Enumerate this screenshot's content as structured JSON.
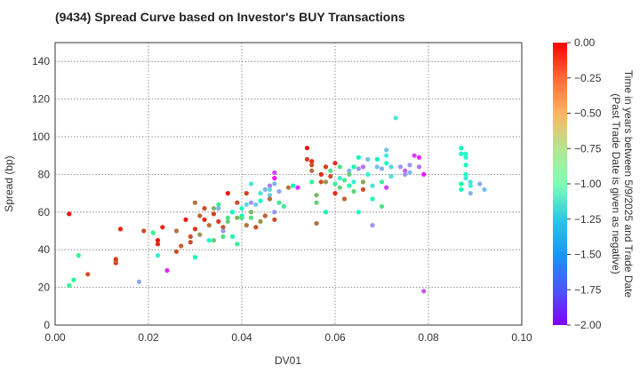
{
  "chart_data": {
    "type": "scatter",
    "title": "(9434)   Spread Curve based on Investor's BUY Transactions",
    "xlabel": "DV01",
    "ylabel": "Spread (bp)",
    "xlim": [
      0,
      0.1
    ],
    "ylim": [
      0,
      150
    ],
    "xticks": [
      0.0,
      0.02,
      0.04,
      0.06,
      0.08,
      0.1
    ],
    "xtick_labels": [
      "0.00",
      "0.02",
      "0.04",
      "0.06",
      "0.08",
      "0.10"
    ],
    "yticks": [
      0,
      20,
      40,
      60,
      80,
      100,
      120,
      140
    ],
    "ytick_labels": [
      "0",
      "20",
      "40",
      "60",
      "80",
      "100",
      "120",
      "140"
    ],
    "grid": true,
    "colorbar": {
      "label_line1": "Time in years between 5/9/2025 and Trade Date",
      "label_line2": "(Past Trade Date is given as negative)",
      "range": [
        -2.0,
        0.0
      ],
      "colormap": "rainbow",
      "ticks": [
        0.0,
        -0.25,
        -0.5,
        -0.75,
        -1.0,
        -1.25,
        -1.5,
        -1.75,
        -2.0
      ],
      "tick_labels": [
        "0.00",
        "−0.25",
        "−0.50",
        "−0.75",
        "−1.00",
        "−1.25",
        "−1.50",
        "−1.75",
        "−2.00"
      ]
    },
    "points": [
      [
        0.003,
        59,
        -0.05
      ],
      [
        0.003,
        21,
        -0.8
      ],
      [
        0.004,
        24,
        -0.8
      ],
      [
        0.005,
        37,
        -0.8
      ],
      [
        0.007,
        27,
        -0.2
      ],
      [
        0.013,
        33,
        -0.1
      ],
      [
        0.013,
        34,
        -0.3
      ],
      [
        0.013,
        35,
        -0.15
      ],
      [
        0.014,
        51,
        -0.1
      ],
      [
        0.018,
        23,
        -1.55
      ],
      [
        0.019,
        50,
        -0.2
      ],
      [
        0.021,
        49,
        -0.8
      ],
      [
        0.022,
        45,
        -0.05
      ],
      [
        0.022,
        43,
        -0.1
      ],
      [
        0.022,
        37,
        -1.2
      ],
      [
        0.023,
        52,
        -0.1
      ],
      [
        0.024,
        29,
        -1.9
      ],
      [
        0.026,
        39,
        -0.2
      ],
      [
        0.026,
        50,
        -0.3
      ],
      [
        0.027,
        42,
        -0.25
      ],
      [
        0.028,
        56,
        -0.05
      ],
      [
        0.029,
        47,
        -0.2
      ],
      [
        0.029,
        44,
        -0.2
      ],
      [
        0.03,
        51,
        -0.15
      ],
      [
        0.03,
        36,
        -1.0
      ],
      [
        0.03,
        65,
        -0.3
      ],
      [
        0.031,
        58,
        -0.25
      ],
      [
        0.031,
        48,
        -0.4
      ],
      [
        0.032,
        62,
        -0.2
      ],
      [
        0.032,
        56,
        -0.1
      ],
      [
        0.033,
        53,
        -0.3
      ],
      [
        0.033,
        45,
        -1.1
      ],
      [
        0.034,
        62,
        -0.5
      ],
      [
        0.034,
        59,
        -0.15
      ],
      [
        0.034,
        45,
        -0.6
      ],
      [
        0.035,
        64,
        -0.8
      ],
      [
        0.035,
        55,
        -0.15
      ],
      [
        0.035,
        62,
        -1.5
      ],
      [
        0.036,
        52,
        -0.2
      ],
      [
        0.036,
        50,
        -1.6
      ],
      [
        0.036,
        47,
        -0.7
      ],
      [
        0.037,
        70,
        -0.05
      ],
      [
        0.037,
        57,
        -0.7
      ],
      [
        0.037,
        55,
        -0.6
      ],
      [
        0.038,
        60,
        -1.0
      ],
      [
        0.038,
        47,
        -0.9
      ],
      [
        0.039,
        57,
        -0.5
      ],
      [
        0.039,
        65,
        -0.2
      ],
      [
        0.039,
        43,
        -0.8
      ],
      [
        0.04,
        58,
        -1.0
      ],
      [
        0.04,
        62,
        -1.1
      ],
      [
        0.04,
        57,
        -0.7
      ],
      [
        0.041,
        53,
        -0.3
      ],
      [
        0.041,
        70,
        -0.15
      ],
      [
        0.041,
        64,
        -1.4
      ],
      [
        0.042,
        75,
        -1.3
      ],
      [
        0.042,
        65,
        -1.6
      ],
      [
        0.042,
        60,
        -0.5
      ],
      [
        0.042,
        57,
        -0.7
      ],
      [
        0.043,
        64,
        -1.45
      ],
      [
        0.043,
        52,
        -0.2
      ],
      [
        0.044,
        66,
        -1.1
      ],
      [
        0.044,
        55,
        -0.4
      ],
      [
        0.044,
        70,
        -1.3
      ],
      [
        0.045,
        72,
        -1.5
      ],
      [
        0.045,
        58,
        -0.25
      ],
      [
        0.046,
        69,
        -1.4
      ],
      [
        0.046,
        74,
        -1.7
      ],
      [
        0.046,
        72,
        -1.35
      ],
      [
        0.046,
        67,
        -0.3
      ],
      [
        0.047,
        75,
        -1.5
      ],
      [
        0.047,
        60,
        -1.6
      ],
      [
        0.047,
        56,
        -0.2
      ],
      [
        0.047,
        78,
        -1.95
      ],
      [
        0.047,
        81,
        -1.85
      ],
      [
        0.048,
        71,
        -1.55
      ],
      [
        0.048,
        65,
        -0.75
      ],
      [
        0.049,
        63,
        -0.8
      ],
      [
        0.05,
        73,
        -0.3
      ],
      [
        0.051,
        74,
        -1.0
      ],
      [
        0.052,
        73,
        -1.9
      ],
      [
        0.054,
        94,
        -0.05
      ],
      [
        0.054,
        88,
        -0.15
      ],
      [
        0.055,
        87,
        -0.1
      ],
      [
        0.055,
        82,
        -0.3
      ],
      [
        0.055,
        85,
        -0.2
      ],
      [
        0.055,
        76,
        -0.8
      ],
      [
        0.056,
        69,
        -0.5
      ],
      [
        0.056,
        65,
        -0.6
      ],
      [
        0.056,
        54,
        -0.3
      ],
      [
        0.057,
        80,
        -0.1
      ],
      [
        0.057,
        76,
        -0.2
      ],
      [
        0.058,
        84,
        -0.15
      ],
      [
        0.058,
        76,
        -0.4
      ],
      [
        0.058,
        60,
        -1.0
      ],
      [
        0.059,
        82,
        -0.7
      ],
      [
        0.059,
        79,
        -0.2
      ],
      [
        0.06,
        75,
        -0.8
      ],
      [
        0.06,
        86,
        -0.1
      ],
      [
        0.06,
        70,
        -0.1
      ],
      [
        0.061,
        84,
        -0.7
      ],
      [
        0.061,
        78,
        -1.2
      ],
      [
        0.061,
        73,
        -0.6
      ],
      [
        0.062,
        77,
        -0.75
      ],
      [
        0.062,
        67,
        -0.25
      ],
      [
        0.063,
        82,
        -1.5
      ],
      [
        0.063,
        80,
        -0.6
      ],
      [
        0.063,
        74,
        -0.85
      ],
      [
        0.064,
        84,
        -0.9
      ],
      [
        0.064,
        76,
        -1.2
      ],
      [
        0.064,
        71,
        -0.65
      ],
      [
        0.065,
        89,
        -1.0
      ],
      [
        0.065,
        60,
        -1.1
      ],
      [
        0.065,
        83,
        -1.6
      ],
      [
        0.066,
        76,
        -0.45
      ],
      [
        0.066,
        72,
        -0.2
      ],
      [
        0.066,
        84,
        -1.7
      ],
      [
        0.067,
        88,
        -1.45
      ],
      [
        0.067,
        80,
        -1.2
      ],
      [
        0.068,
        67,
        -0.9
      ],
      [
        0.068,
        53,
        -1.6
      ],
      [
        0.068,
        74,
        -1.3
      ],
      [
        0.069,
        84,
        -1.45
      ],
      [
        0.069,
        88,
        -1.0
      ],
      [
        0.07,
        76,
        -0.8
      ],
      [
        0.07,
        83,
        -1.5
      ],
      [
        0.07,
        63,
        -0.7
      ],
      [
        0.071,
        93,
        -1.45
      ],
      [
        0.071,
        90,
        -1.25
      ],
      [
        0.071,
        86,
        -1.1
      ],
      [
        0.071,
        73,
        -1.85
      ],
      [
        0.072,
        84,
        -1.35
      ],
      [
        0.072,
        79,
        -1.3
      ],
      [
        0.073,
        110,
        -1.3
      ],
      [
        0.074,
        84,
        -1.6
      ],
      [
        0.075,
        82,
        -1.75
      ],
      [
        0.075,
        80,
        -1.6
      ],
      [
        0.076,
        85,
        -1.6
      ],
      [
        0.076,
        81,
        -1.5
      ],
      [
        0.077,
        90,
        -1.85
      ],
      [
        0.078,
        89,
        -1.9
      ],
      [
        0.078,
        84,
        -1.7
      ],
      [
        0.079,
        18,
        -1.8
      ],
      [
        0.079,
        80,
        -1.95
      ],
      [
        0.087,
        94,
        -1.05
      ],
      [
        0.087,
        91,
        -1.1
      ],
      [
        0.087,
        75,
        -0.9
      ],
      [
        0.087,
        72,
        -1.05
      ],
      [
        0.088,
        91,
        -1.2
      ],
      [
        0.088,
        89,
        -1.15
      ],
      [
        0.088,
        85,
        -1.2
      ],
      [
        0.088,
        80,
        -1.1
      ],
      [
        0.088,
        78,
        -1.25
      ],
      [
        0.088,
        85,
        -1.1
      ],
      [
        0.089,
        70,
        -1.5
      ],
      [
        0.089,
        76,
        -1.3
      ],
      [
        0.089,
        74,
        -1.25
      ],
      [
        0.091,
        75,
        -1.55
      ],
      [
        0.092,
        72,
        -1.45
      ]
    ]
  }
}
